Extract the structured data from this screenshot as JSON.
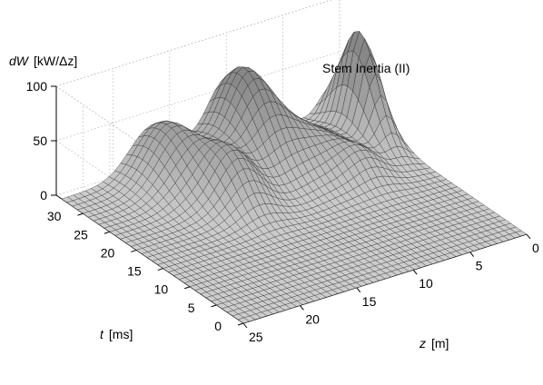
{
  "chart_data": {
    "type": "surface3d",
    "title": "Stem Inertia (II)",
    "zaxis": {
      "label_var": "dW",
      "label_unit": "[kW/Δz]",
      "ticks": [
        0,
        50,
        100
      ],
      "tick_labels": [
        "0",
        "50",
        "100"
      ],
      "range": [
        0,
        100
      ]
    },
    "yaxis": {
      "label_var": "t",
      "label_unit": "[ms]",
      "ticks": [
        0,
        5,
        10,
        15,
        20,
        25,
        30
      ],
      "tick_labels": [
        "0",
        "5",
        "10",
        "15",
        "20",
        "25",
        "30"
      ],
      "range": [
        0,
        35
      ]
    },
    "xaxis": {
      "label_var": "z",
      "label_unit": "[m]",
      "ticks": [
        0,
        5,
        10,
        15,
        20,
        25
      ],
      "tick_labels": [
        "0",
        "5",
        "10",
        "15",
        "20",
        "25"
      ],
      "range": [
        0,
        25
      ]
    },
    "grid": true,
    "peaks": [
      {
        "z": 1.5,
        "t": 28,
        "dW": 95,
        "sz": 0.9,
        "st": 3.5
      },
      {
        "z": 10.5,
        "t": 31,
        "dW": 76,
        "sz": 1.8,
        "st": 4.5
      },
      {
        "z": 17,
        "t": 31,
        "dW": 52,
        "sz": 2.0,
        "st": 4.5
      },
      {
        "z": 15,
        "t": 23,
        "dW": 42,
        "sz": 1.6,
        "st": 3.5
      },
      {
        "z": 7,
        "t": 26,
        "dW": 30,
        "sz": 2.5,
        "st": 5.0
      },
      {
        "z": 5,
        "t": 20,
        "dW": 16,
        "sz": 1.4,
        "st": 2.5
      }
    ]
  }
}
